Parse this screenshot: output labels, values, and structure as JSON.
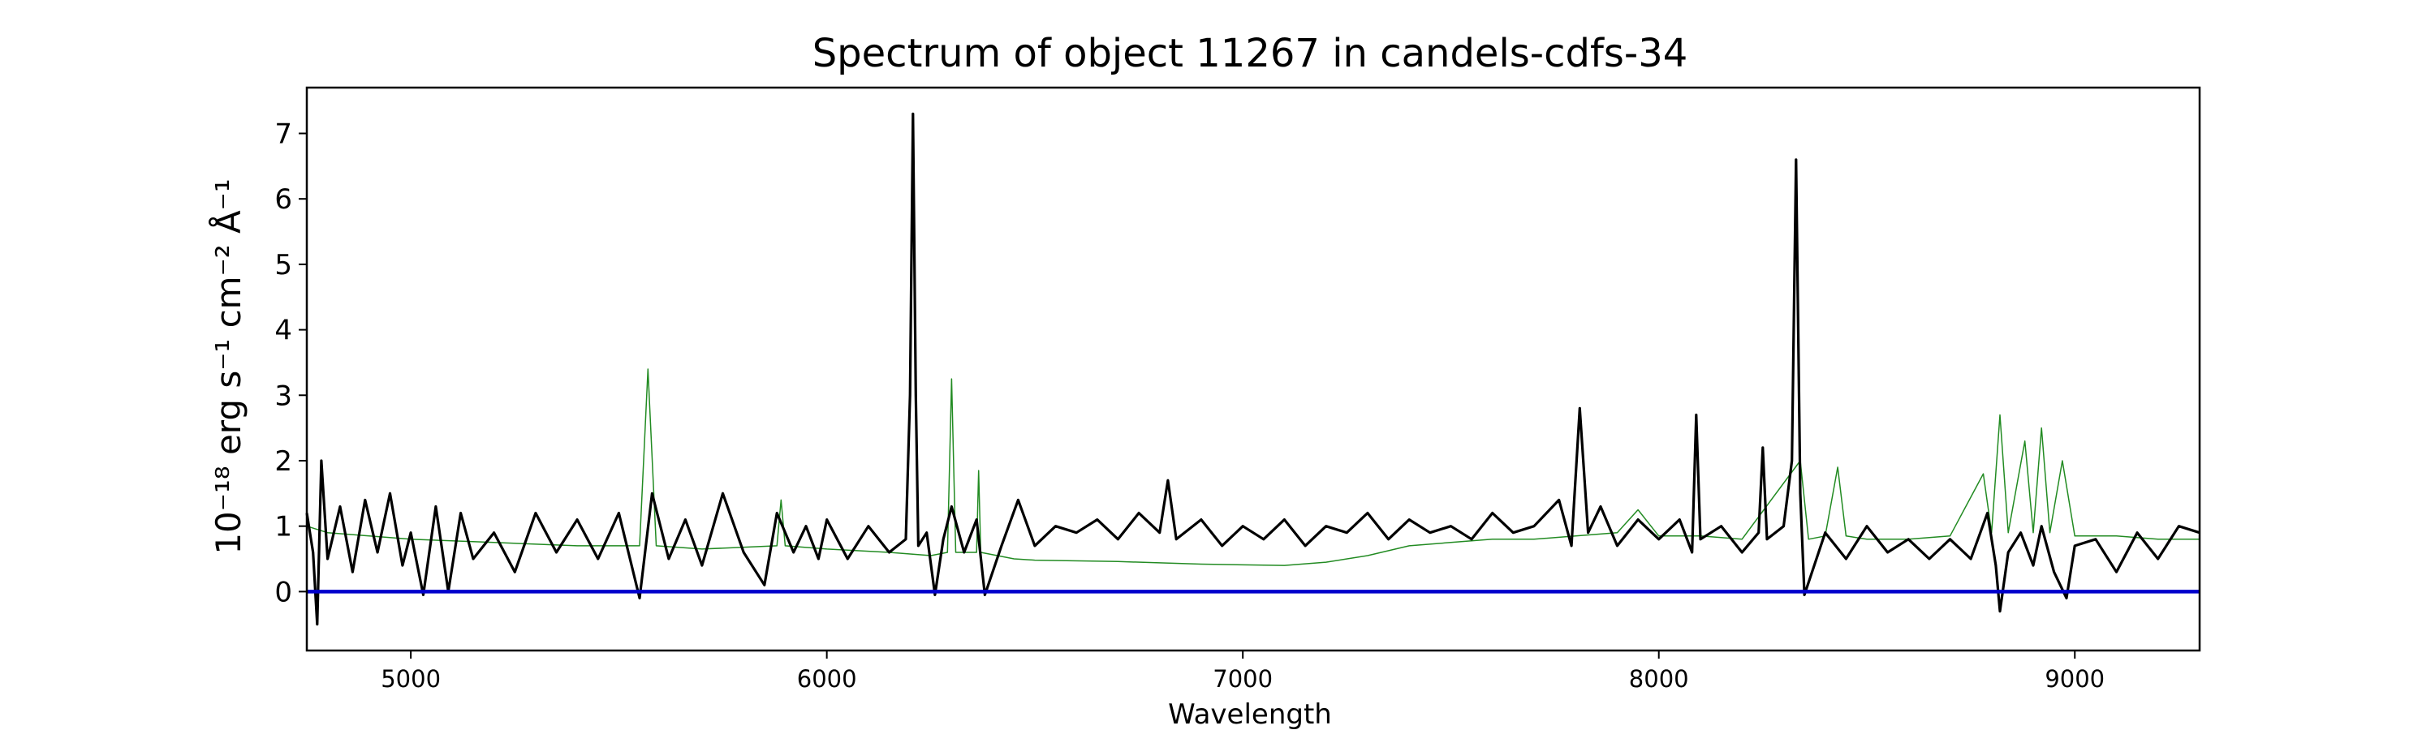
{
  "chart_data": {
    "type": "line",
    "title": "Spectrum of object 11267 in candels-cdfs-34",
    "xlabel": "Wavelength",
    "ylabel": "10⁻¹⁸ erg s⁻¹ cm⁻² Å⁻¹",
    "xlim": [
      4750,
      9300
    ],
    "ylim": [
      -0.9,
      7.7
    ],
    "x_ticks": [
      5000,
      6000,
      7000,
      8000,
      9000
    ],
    "y_ticks": [
      0,
      1,
      2,
      3,
      4,
      5,
      6,
      7
    ],
    "grid": false,
    "series": [
      {
        "color": "#000000",
        "role": "flux",
        "points": [
          [
            4750,
            1.2
          ],
          [
            4765,
            0.6
          ],
          [
            4775,
            -0.5
          ],
          [
            4785,
            2.0
          ],
          [
            4800,
            0.5
          ],
          [
            4830,
            1.3
          ],
          [
            4860,
            0.3
          ],
          [
            4890,
            1.4
          ],
          [
            4920,
            0.6
          ],
          [
            4950,
            1.5
          ],
          [
            4980,
            0.4
          ],
          [
            5000,
            0.9
          ],
          [
            5030,
            -0.05
          ],
          [
            5060,
            1.3
          ],
          [
            5090,
            0.0
          ],
          [
            5120,
            1.2
          ],
          [
            5150,
            0.5
          ],
          [
            5200,
            0.9
          ],
          [
            5250,
            0.3
          ],
          [
            5300,
            1.2
          ],
          [
            5350,
            0.6
          ],
          [
            5400,
            1.1
          ],
          [
            5450,
            0.5
          ],
          [
            5500,
            1.2
          ],
          [
            5550,
            -0.1
          ],
          [
            5580,
            1.5
          ],
          [
            5620,
            0.5
          ],
          [
            5660,
            1.1
          ],
          [
            5700,
            0.4
          ],
          [
            5750,
            1.5
          ],
          [
            5800,
            0.6
          ],
          [
            5850,
            0.1
          ],
          [
            5880,
            1.2
          ],
          [
            5920,
            0.6
          ],
          [
            5950,
            1.0
          ],
          [
            5980,
            0.5
          ],
          [
            6000,
            1.1
          ],
          [
            6050,
            0.5
          ],
          [
            6100,
            1.0
          ],
          [
            6150,
            0.6
          ],
          [
            6190,
            0.8
          ],
          [
            6200,
            3.0
          ],
          [
            6207,
            7.3
          ],
          [
            6214,
            3.0
          ],
          [
            6220,
            0.7
          ],
          [
            6240,
            0.9
          ],
          [
            6260,
            -0.05
          ],
          [
            6280,
            0.8
          ],
          [
            6300,
            1.3
          ],
          [
            6330,
            0.6
          ],
          [
            6360,
            1.1
          ],
          [
            6380,
            -0.05
          ],
          [
            6420,
            0.7
          ],
          [
            6460,
            1.4
          ],
          [
            6500,
            0.7
          ],
          [
            6550,
            1.0
          ],
          [
            6600,
            0.9
          ],
          [
            6650,
            1.1
          ],
          [
            6700,
            0.8
          ],
          [
            6750,
            1.2
          ],
          [
            6800,
            0.9
          ],
          [
            6820,
            1.7
          ],
          [
            6840,
            0.8
          ],
          [
            6900,
            1.1
          ],
          [
            6950,
            0.7
          ],
          [
            7000,
            1.0
          ],
          [
            7050,
            0.8
          ],
          [
            7100,
            1.1
          ],
          [
            7150,
            0.7
          ],
          [
            7200,
            1.0
          ],
          [
            7250,
            0.9
          ],
          [
            7300,
            1.2
          ],
          [
            7350,
            0.8
          ],
          [
            7400,
            1.1
          ],
          [
            7450,
            0.9
          ],
          [
            7500,
            1.0
          ],
          [
            7550,
            0.8
          ],
          [
            7600,
            1.2
          ],
          [
            7650,
            0.9
          ],
          [
            7700,
            1.0
          ],
          [
            7760,
            1.4
          ],
          [
            7790,
            0.7
          ],
          [
            7810,
            2.8
          ],
          [
            7830,
            0.9
          ],
          [
            7860,
            1.3
          ],
          [
            7900,
            0.7
          ],
          [
            7950,
            1.1
          ],
          [
            8000,
            0.8
          ],
          [
            8050,
            1.1
          ],
          [
            8080,
            0.6
          ],
          [
            8090,
            2.7
          ],
          [
            8100,
            0.8
          ],
          [
            8150,
            1.0
          ],
          [
            8200,
            0.6
          ],
          [
            8240,
            0.9
          ],
          [
            8250,
            2.2
          ],
          [
            8260,
            0.8
          ],
          [
            8300,
            1.0
          ],
          [
            8320,
            2.0
          ],
          [
            8330,
            6.6
          ],
          [
            8340,
            1.5
          ],
          [
            8350,
            -0.05
          ],
          [
            8400,
            0.9
          ],
          [
            8450,
            0.5
          ],
          [
            8500,
            1.0
          ],
          [
            8550,
            0.6
          ],
          [
            8600,
            0.8
          ],
          [
            8650,
            0.5
          ],
          [
            8700,
            0.8
          ],
          [
            8750,
            0.5
          ],
          [
            8790,
            1.2
          ],
          [
            8810,
            0.4
          ],
          [
            8820,
            -0.3
          ],
          [
            8840,
            0.6
          ],
          [
            8870,
            0.9
          ],
          [
            8900,
            0.4
          ],
          [
            8920,
            1.0
          ],
          [
            8950,
            0.3
          ],
          [
            8980,
            -0.1
          ],
          [
            9000,
            0.7
          ],
          [
            9050,
            0.8
          ],
          [
            9100,
            0.3
          ],
          [
            9150,
            0.9
          ],
          [
            9200,
            0.5
          ],
          [
            9250,
            1.0
          ],
          [
            9300,
            0.9
          ]
        ]
      },
      {
        "color": "#228b22",
        "role": "error",
        "points": [
          [
            4750,
            1.0
          ],
          [
            4800,
            0.9
          ],
          [
            4900,
            0.85
          ],
          [
            5000,
            0.8
          ],
          [
            5200,
            0.75
          ],
          [
            5400,
            0.7
          ],
          [
            5550,
            0.7
          ],
          [
            5570,
            3.4
          ],
          [
            5590,
            0.7
          ],
          [
            5700,
            0.65
          ],
          [
            5880,
            0.7
          ],
          [
            5890,
            1.4
          ],
          [
            5900,
            0.7
          ],
          [
            6000,
            0.65
          ],
          [
            6150,
            0.6
          ],
          [
            6250,
            0.55
          ],
          [
            6290,
            0.6
          ],
          [
            6300,
            3.25
          ],
          [
            6310,
            0.6
          ],
          [
            6360,
            0.6
          ],
          [
            6365,
            1.85
          ],
          [
            6370,
            0.6
          ],
          [
            6450,
            0.5
          ],
          [
            6500,
            0.48
          ],
          [
            6700,
            0.46
          ],
          [
            6900,
            0.42
          ],
          [
            7100,
            0.4
          ],
          [
            7200,
            0.45
          ],
          [
            7300,
            0.55
          ],
          [
            7400,
            0.7
          ],
          [
            7500,
            0.75
          ],
          [
            7600,
            0.8
          ],
          [
            7700,
            0.8
          ],
          [
            7800,
            0.85
          ],
          [
            7900,
            0.9
          ],
          [
            7950,
            1.25
          ],
          [
            8000,
            0.85
          ],
          [
            8100,
            0.85
          ],
          [
            8200,
            0.8
          ],
          [
            8340,
            2.0
          ],
          [
            8360,
            0.8
          ],
          [
            8400,
            0.85
          ],
          [
            8430,
            1.9
          ],
          [
            8450,
            0.85
          ],
          [
            8500,
            0.8
          ],
          [
            8600,
            0.8
          ],
          [
            8700,
            0.85
          ],
          [
            8780,
            1.8
          ],
          [
            8800,
            0.9
          ],
          [
            8820,
            2.7
          ],
          [
            8840,
            0.9
          ],
          [
            8880,
            2.3
          ],
          [
            8900,
            0.9
          ],
          [
            8920,
            2.5
          ],
          [
            8940,
            0.9
          ],
          [
            8970,
            2.0
          ],
          [
            9000,
            0.85
          ],
          [
            9100,
            0.85
          ],
          [
            9200,
            0.8
          ],
          [
            9300,
            0.8
          ]
        ]
      },
      {
        "color": "#0000cc",
        "role": "zero-line",
        "points": [
          [
            4750,
            0.0
          ],
          [
            9300,
            0.0
          ]
        ]
      }
    ]
  }
}
